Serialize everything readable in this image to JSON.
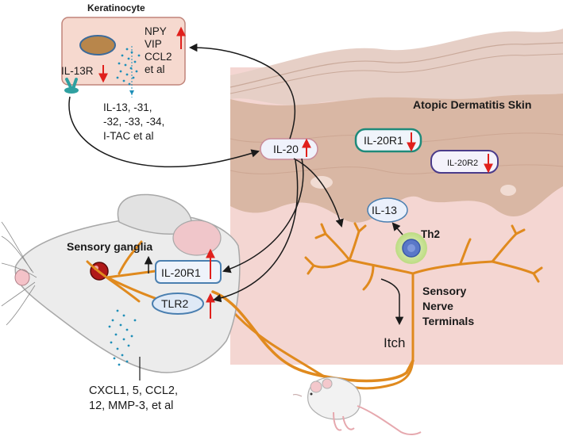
{
  "keratinocyte": {
    "title": "Keratinocyte",
    "mediators": [
      "NPY",
      "VIP",
      "CCL2",
      "et al"
    ],
    "receptor": "IL-13R",
    "secreted": [
      "IL-13, -31,",
      "-32, -33, -34,",
      "I-TAC et al"
    ]
  },
  "skin": {
    "title": "Atopic Dermatitis Skin",
    "il20": "IL-20",
    "il20r1": "IL-20R1",
    "il20r2": "IL-20R2",
    "il13": "IL-13",
    "th2": "Th2",
    "nerve_label": [
      "Sensory",
      "Nerve",
      "Terminals"
    ],
    "itch": "Itch"
  },
  "ganglia": {
    "title": "Sensory ganglia",
    "il20r1": "IL-20R1",
    "tlr2": "TLR2",
    "secreted": [
      "CXCL1, 5, CCL2,",
      "12, MMP-3, et al"
    ]
  },
  "colors": {
    "nerve": "#e08a1e",
    "up_arrow": "#e0201c",
    "down_arrow": "#e0201c",
    "skin_bg": "#f4d6d2",
    "epidermis": "#d9b7a4",
    "badge_border": "#4a7fb0",
    "teal_border": "#1e8a7a",
    "purple_border": "#4a3b8a",
    "keratinocyte_bg": "#f6d9cf"
  },
  "icons": [
    "up-arrow-icon",
    "down-arrow-icon",
    "receptor-icon",
    "nucleus-icon",
    "th2-cell-icon",
    "mouse-icon",
    "ganglion-icon"
  ]
}
